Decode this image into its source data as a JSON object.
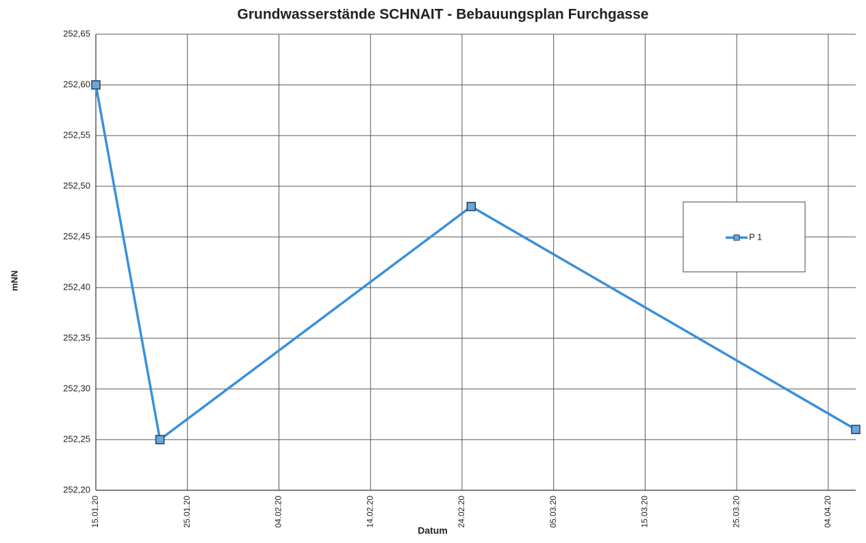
{
  "chart_data": {
    "type": "line",
    "title": "Grundwasserstände SCHNAIT - Bebauungsplan Furchgasse",
    "xlabel": "Datum",
    "ylabel": "mNN",
    "x": [
      "15.01.20",
      "22.01.20",
      "25.02.20",
      "07.04.20"
    ],
    "series": [
      {
        "name": "P 1",
        "color": "#3b8fd8",
        "values": [
          252.6,
          252.25,
          252.48,
          252.26
        ]
      }
    ],
    "xlim": [
      "15.01.20",
      "07.04.20"
    ],
    "xticks": [
      "15.01.20",
      "25.01.20",
      "04.02.20",
      "14.02.20",
      "24.02.20",
      "05.03.20",
      "15.03.20",
      "25.03.20",
      "04.04.20"
    ],
    "ylim": [
      252.2,
      252.65
    ],
    "yticks": [
      {
        "value": 252.2,
        "label": "252,20"
      },
      {
        "value": 252.25,
        "label": "252,25"
      },
      {
        "value": 252.3,
        "label": "252,30"
      },
      {
        "value": 252.35,
        "label": "252,35"
      },
      {
        "value": 252.4,
        "label": "252,40"
      },
      {
        "value": 252.45,
        "label": "252,45"
      },
      {
        "value": 252.5,
        "label": "252,50"
      },
      {
        "value": 252.55,
        "label": "252,55"
      },
      {
        "value": 252.6,
        "label": "252,60"
      },
      {
        "value": 252.65,
        "label": "252,65"
      }
    ],
    "grid": true,
    "legend": "right"
  }
}
